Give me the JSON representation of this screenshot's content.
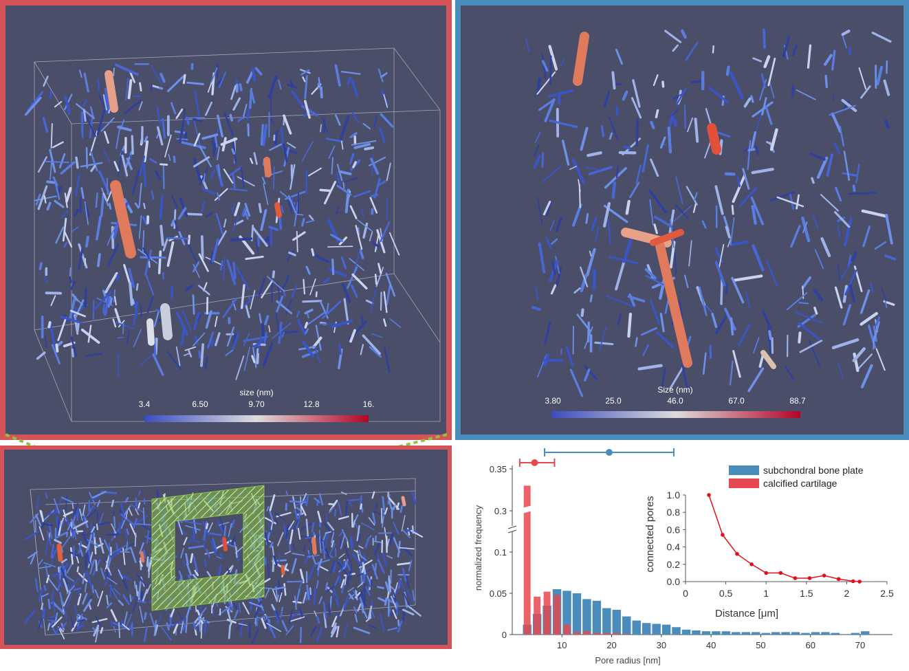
{
  "panel_tl": {
    "colorbar_title": "size (nm)",
    "colorbar_ticks": [
      "3.4",
      "6.50",
      "9.70",
      "12.8",
      "16."
    ],
    "colors": {
      "low": "#3b4cc0",
      "mid": "#dddddd",
      "high": "#b40426",
      "background": "#4a4e68",
      "frame": "#d5545a"
    }
  },
  "panel_tr": {
    "colorbar_title": "Size (nm)",
    "colorbar_ticks": [
      "3.80",
      "25.0",
      "46.0",
      "67.0",
      "88.7"
    ],
    "colors": {
      "frame": "#4a8dbc"
    }
  },
  "panel_bl": {
    "colors": {
      "frame": "#d5545a",
      "highlight": "#8cc63f"
    }
  },
  "chart_data": [
    {
      "type": "bar",
      "xlabel": "Pore radius [nm]",
      "ylabel": "normalized frequency",
      "x_ticks": [
        10,
        20,
        30,
        40,
        50,
        60,
        70
      ],
      "y_ticks": [
        "0",
        "0.05",
        "0.1",
        "0.3",
        "0.35"
      ],
      "legend_position": "top-right",
      "series": [
        {
          "name": "subchondral bone plate",
          "color": "#4a8dbc",
          "x": [
            3,
            5,
            7,
            9,
            11,
            13,
            15,
            17,
            19,
            21,
            23,
            25,
            27,
            29,
            31,
            33,
            35,
            37,
            39,
            41,
            43,
            45,
            47,
            49,
            51,
            53,
            55,
            57,
            59,
            61,
            63,
            65,
            67,
            69,
            71
          ],
          "y": [
            0.012,
            0.025,
            0.035,
            0.055,
            0.053,
            0.05,
            0.043,
            0.041,
            0.032,
            0.03,
            0.022,
            0.017,
            0.014,
            0.013,
            0.012,
            0.009,
            0.006,
            0.005,
            0.004,
            0.004,
            0.004,
            0.003,
            0.003,
            0.003,
            0.002,
            0.003,
            0.003,
            0.003,
            0.002,
            0.003,
            0.003,
            0.002,
            0.0,
            0.002,
            0.004
          ]
        },
        {
          "name": "calcified cartilage",
          "color": "#e8484f",
          "x": [
            3,
            5,
            7,
            9,
            11,
            13,
            15,
            17,
            19,
            21,
            23,
            25
          ],
          "y": [
            0.33,
            0.046,
            0.052,
            0.048,
            0.012,
            0.003,
            0.004,
            0.002,
            0.002,
            0.002,
            0.001,
            0.0
          ]
        }
      ],
      "error_bars": [
        {
          "series": "subchondral bone plate",
          "center": 19.5,
          "low": 6.5,
          "high": 32.5
        },
        {
          "series": "calcified cartilage",
          "center": 4.5,
          "low": 1.5,
          "high": 8.5
        }
      ]
    },
    {
      "type": "line",
      "xlabel": "Distance [μm]",
      "ylabel": "connected pores",
      "x_ticks": [
        "0",
        "0.5",
        "1",
        "1.5",
        "2",
        "2.5"
      ],
      "y_ticks": [
        "0.0",
        "0.2",
        "0.4",
        "0.6",
        "0.8",
        "1.0"
      ],
      "xlim": [
        0,
        2.5
      ],
      "ylim": [
        0,
        1.0
      ],
      "series": [
        {
          "color": "#e0101a",
          "x": [
            0.29,
            0.46,
            0.64,
            0.82,
            1.0,
            1.18,
            1.36,
            1.54,
            1.72,
            1.9,
            2.08,
            2.16
          ],
          "y": [
            1.0,
            0.54,
            0.32,
            0.2,
            0.1,
            0.1,
            0.04,
            0.04,
            0.07,
            0.03,
            0.005,
            0.0
          ]
        }
      ]
    }
  ]
}
